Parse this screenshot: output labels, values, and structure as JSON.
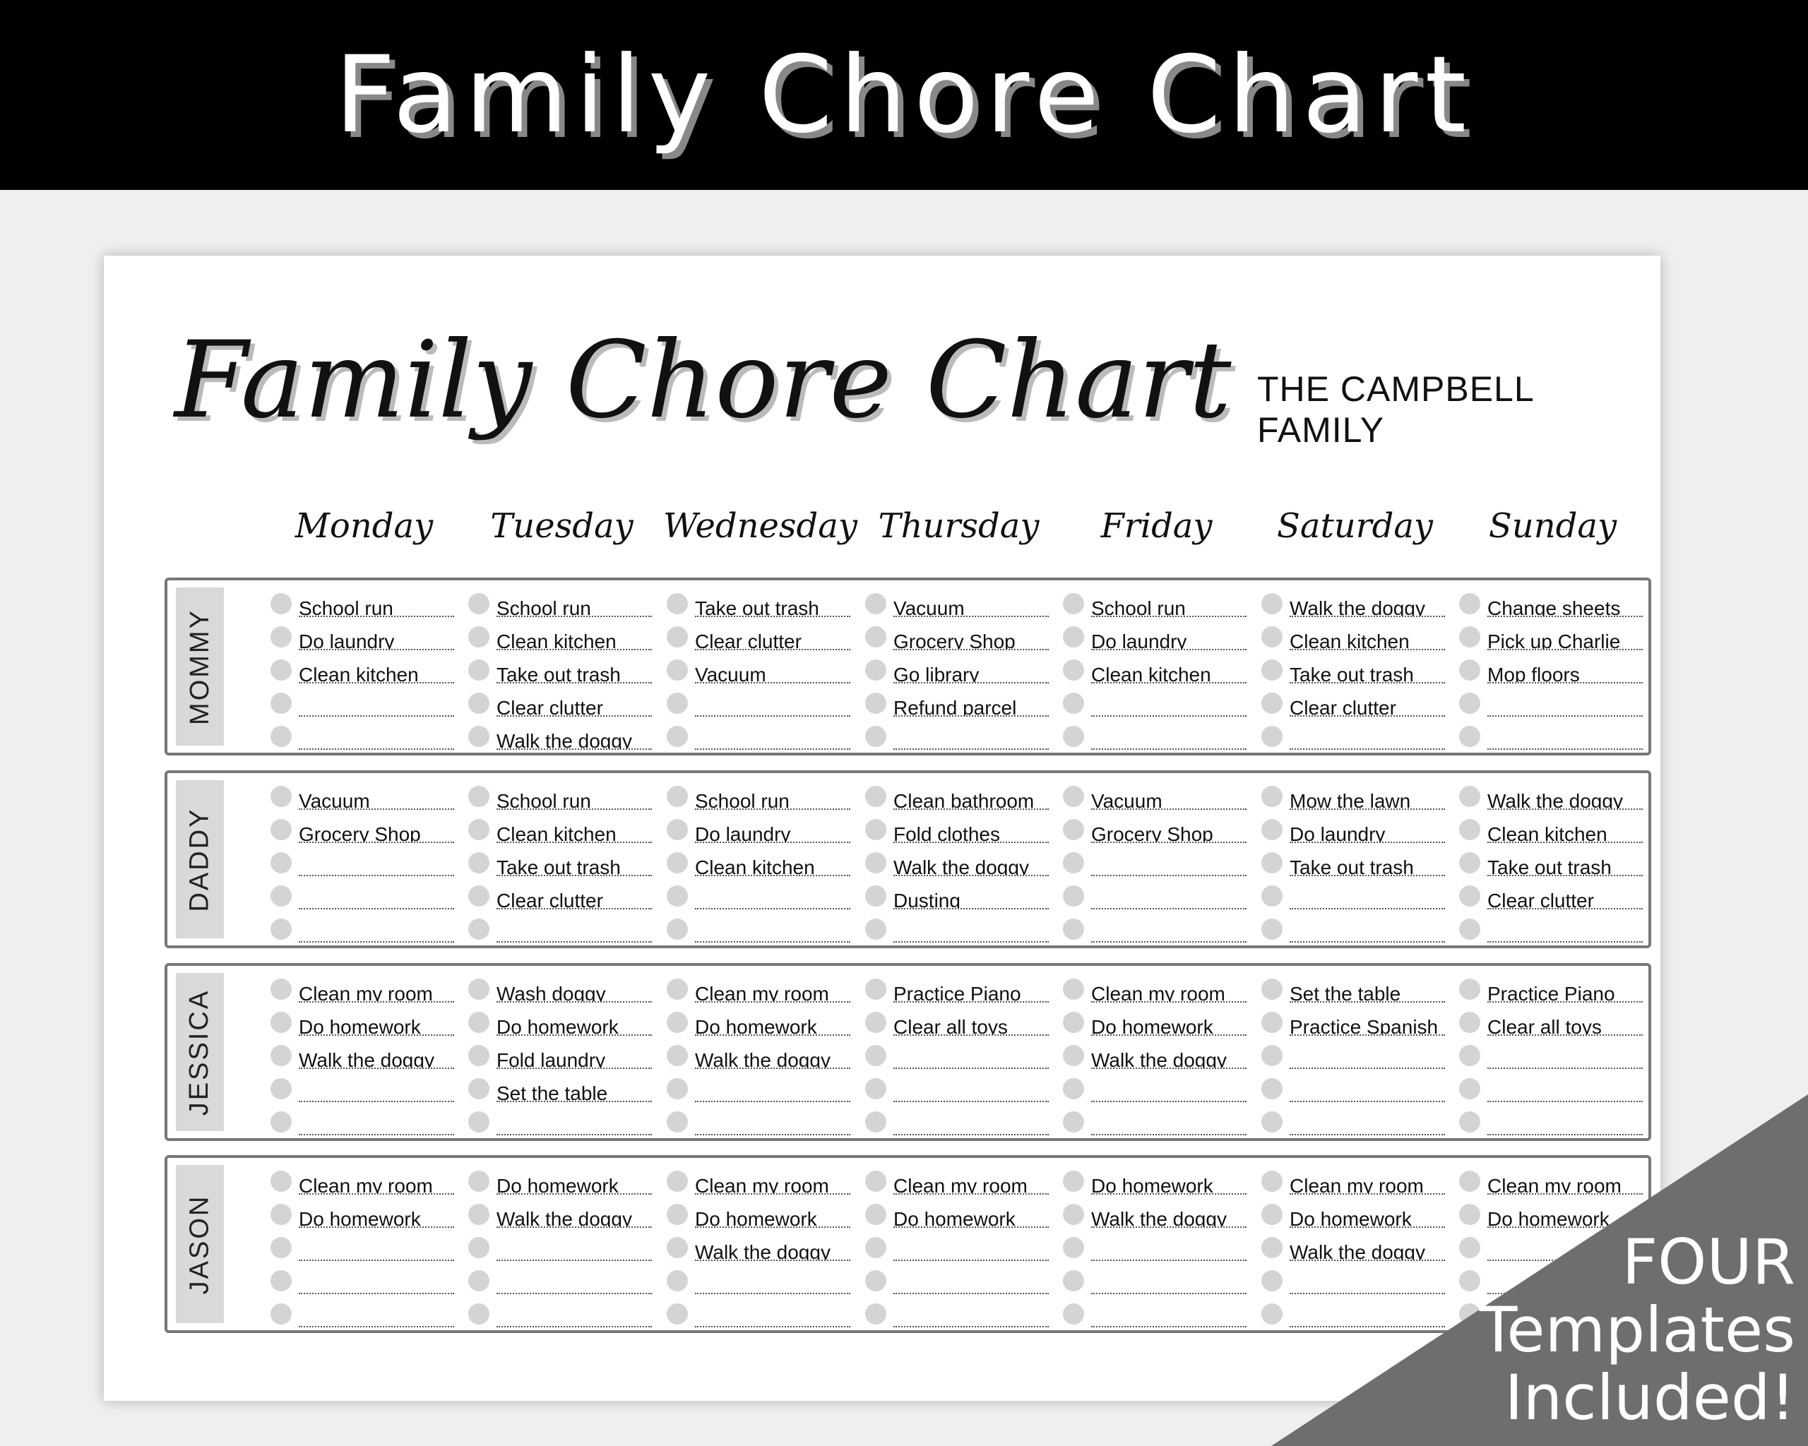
{
  "banner_title": "Family Chore Chart",
  "chart_title": "Family Chore Chart",
  "family_name": "THE CAMPBELL FAMILY",
  "days": [
    "Monday",
    "Tuesday",
    "Wednesday",
    "Thursday",
    "Friday",
    "Saturday",
    "Sunday"
  ],
  "members": [
    {
      "name": "MOMMY",
      "chores": [
        [
          "School run",
          "Do laundry",
          "Clean kitchen",
          "",
          ""
        ],
        [
          "School run",
          "Clean kitchen",
          "Take out trash",
          "Clear clutter",
          "Walk the doggy"
        ],
        [
          "Take out trash",
          "Clear clutter",
          "Vacuum",
          "",
          ""
        ],
        [
          "Vacuum",
          "Grocery Shop",
          "Go library",
          "Refund parcel",
          ""
        ],
        [
          "School run",
          "Do laundry",
          "Clean kitchen",
          "",
          ""
        ],
        [
          "Walk the doggy",
          "Clean kitchen",
          "Take out trash",
          "Clear clutter",
          ""
        ],
        [
          "Change sheets",
          "Pick up Charlie",
          "Mop floors",
          "",
          ""
        ]
      ]
    },
    {
      "name": "DADDY",
      "chores": [
        [
          "Vacuum",
          "Grocery Shop",
          "",
          "",
          ""
        ],
        [
          "School run",
          "Clean kitchen",
          "Take out trash",
          "Clear clutter",
          ""
        ],
        [
          "School run",
          "Do laundry",
          "Clean kitchen",
          "",
          ""
        ],
        [
          "Clean bathroom",
          "Fold clothes",
          "Walk the doggy",
          "Dusting",
          ""
        ],
        [
          "Vacuum",
          "Grocery Shop",
          "",
          "",
          ""
        ],
        [
          "Mow the lawn",
          "Do laundry",
          "Take out trash",
          "",
          ""
        ],
        [
          "Walk the doggy",
          "Clean kitchen",
          "Take out trash",
          "Clear clutter",
          ""
        ]
      ]
    },
    {
      "name": "JESSICA",
      "chores": [
        [
          "Clean my room",
          "Do homework",
          "Walk the doggy",
          "",
          ""
        ],
        [
          "Wash doggy",
          "Do homework",
          "Fold laundry",
          "Set the table",
          ""
        ],
        [
          "Clean my room",
          "Do homework",
          "Walk the doggy",
          "",
          ""
        ],
        [
          "Practice Piano",
          "Clear all toys",
          "",
          "",
          ""
        ],
        [
          "Clean my room",
          "Do homework",
          "Walk the doggy",
          "",
          ""
        ],
        [
          "Set the table",
          "Practice Spanish",
          "",
          "",
          ""
        ],
        [
          "Practice Piano",
          "Clear all toys",
          "",
          "",
          ""
        ]
      ]
    },
    {
      "name": "JASON",
      "chores": [
        [
          "Clean my room",
          "Do homework",
          "",
          "",
          ""
        ],
        [
          "Do homework",
          "Walk the doggy",
          "",
          "",
          ""
        ],
        [
          "Clean my room",
          "Do homework",
          "Walk the doggy",
          "",
          ""
        ],
        [
          "Clean my room",
          "Do homework",
          "",
          "",
          ""
        ],
        [
          "Do homework",
          "Walk the doggy",
          "",
          "",
          ""
        ],
        [
          "Clean my room",
          "Do homework",
          "Walk the doggy",
          "",
          ""
        ],
        [
          "Clean my room",
          "Do homework",
          "",
          "",
          ""
        ]
      ]
    }
  ],
  "corner_badge": {
    "line1": "FOUR",
    "line2": "Templates",
    "line3": "Included!",
    "color": "#6e6e6e"
  }
}
